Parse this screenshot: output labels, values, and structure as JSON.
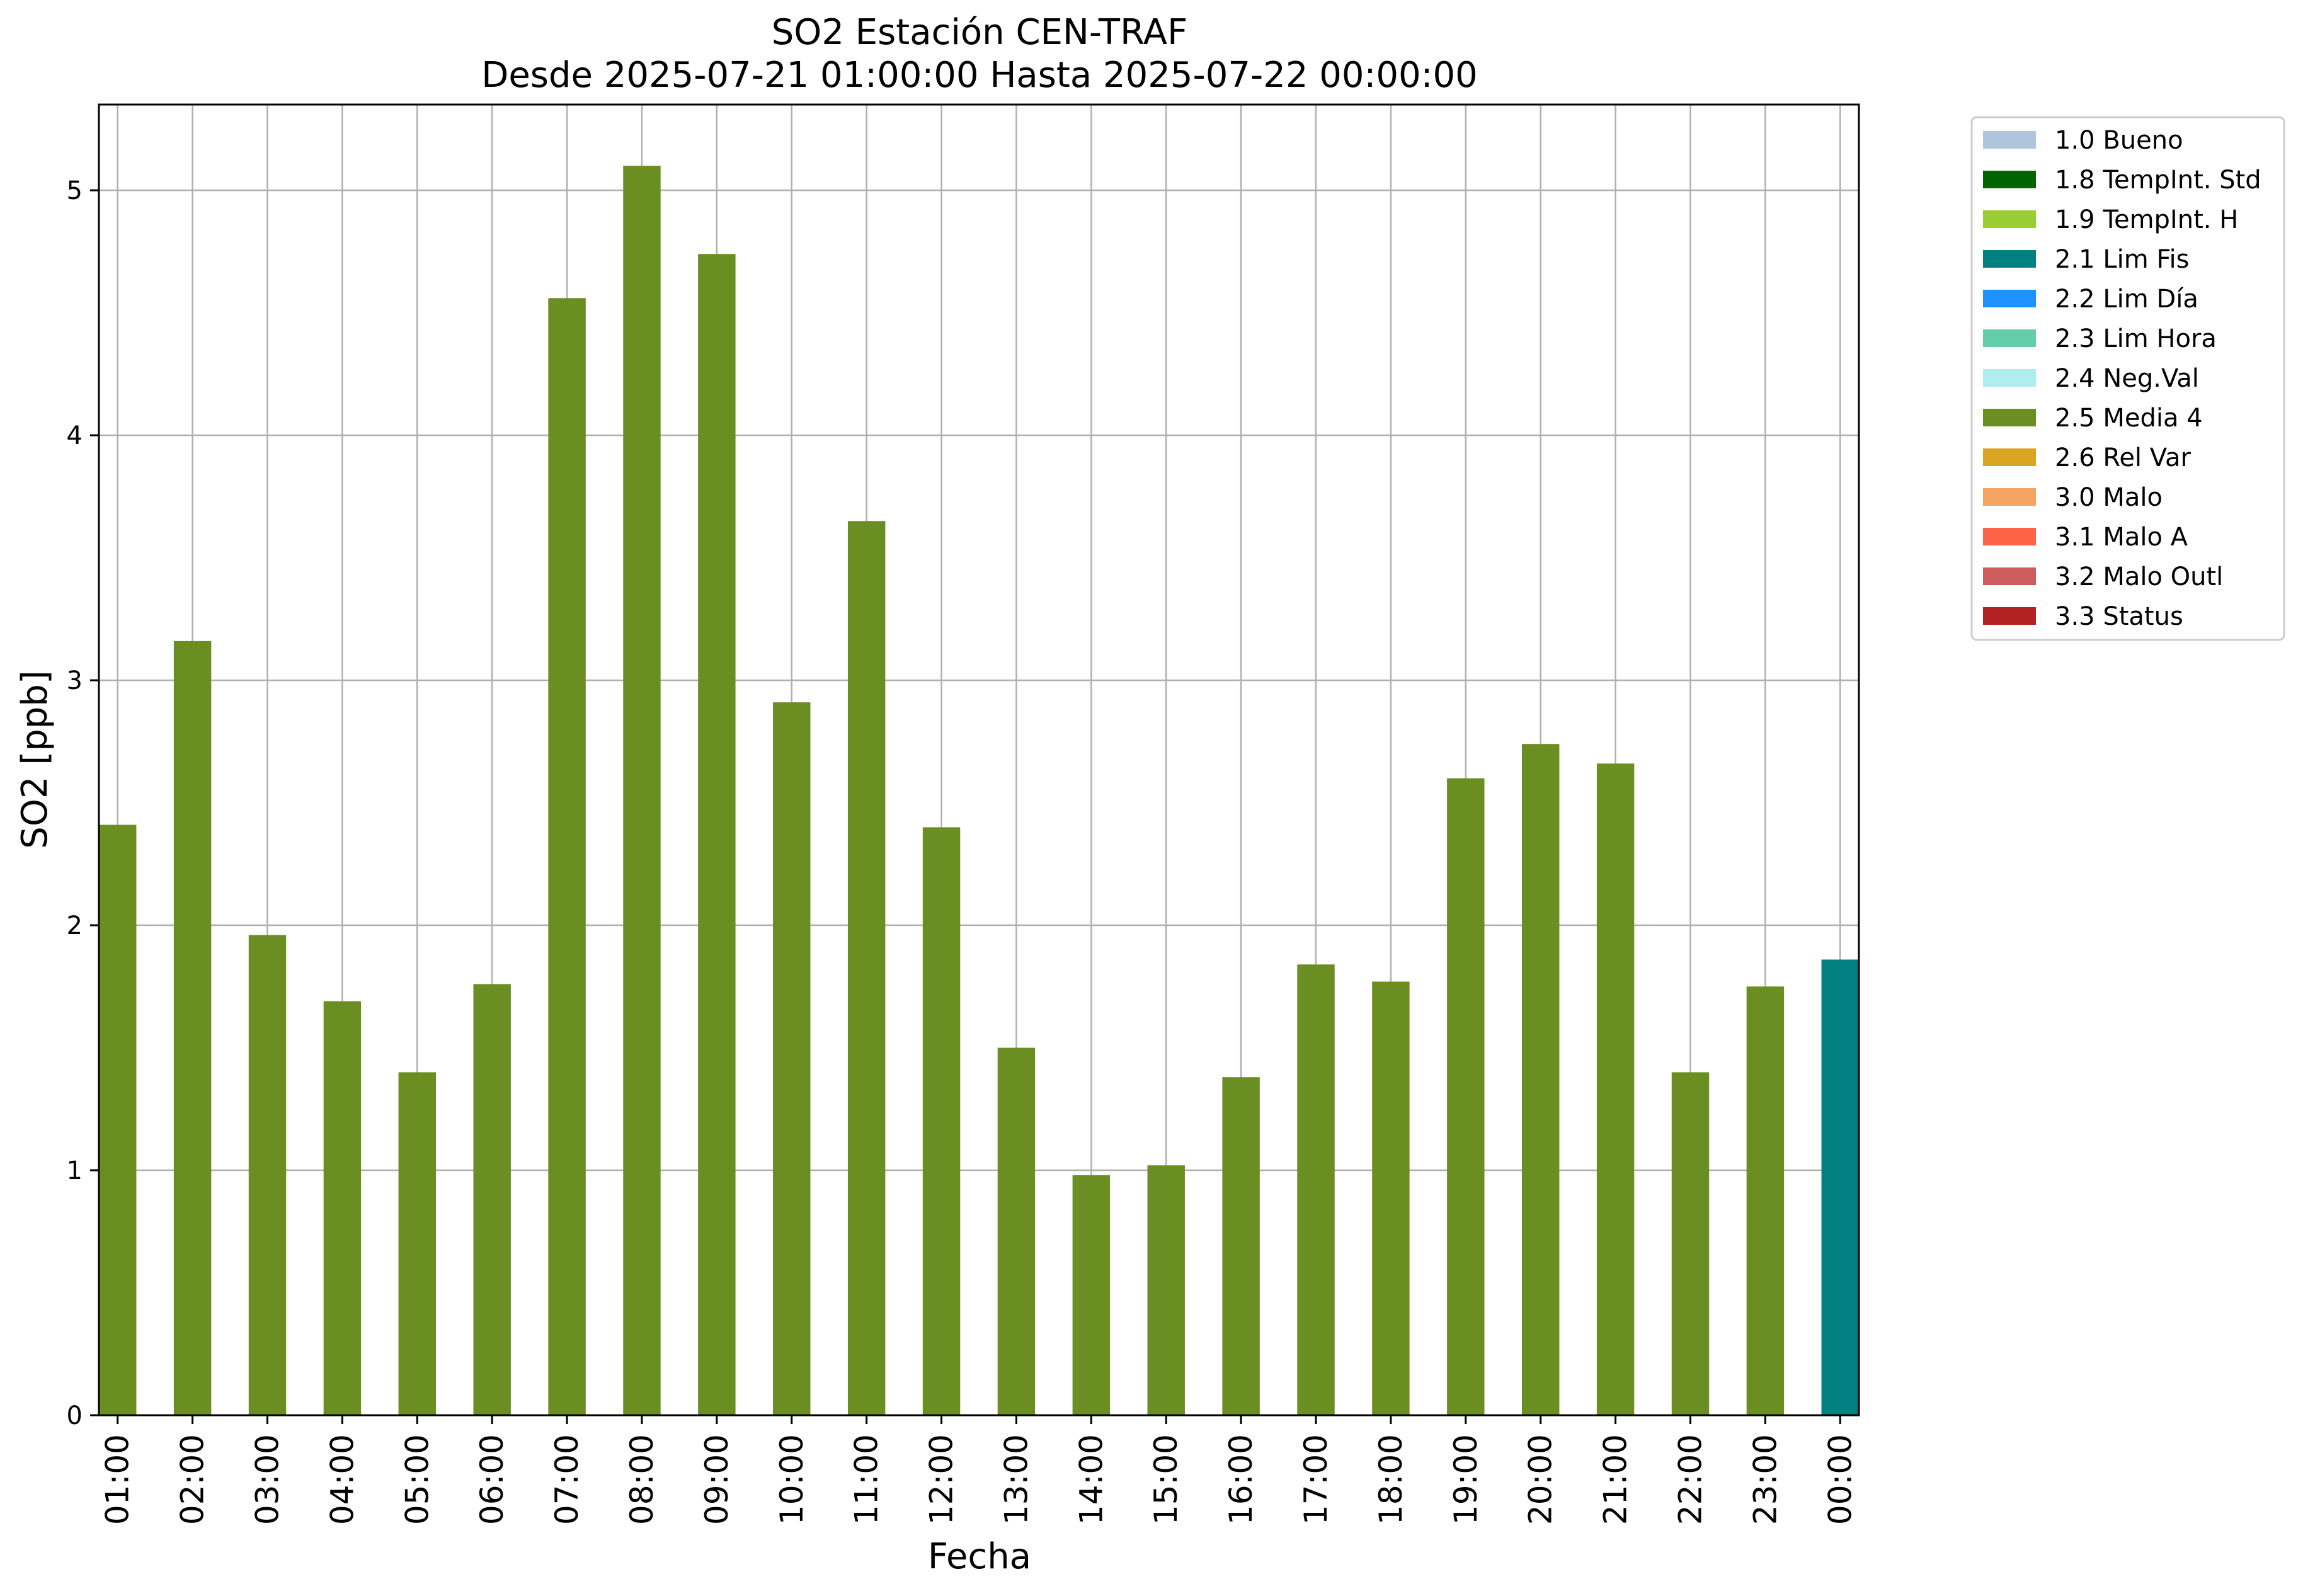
{
  "chart_data": {
    "type": "bar",
    "title": "SO2 Estación CEN-TRAF",
    "subtitle": "Desde 2025-07-21 01:00:00 Hasta 2025-07-22 00:00:00",
    "xlabel": "Fecha",
    "ylabel": "SO2 [ppb]",
    "ylim": [
      0,
      5.35
    ],
    "yticks": [
      "0",
      "1",
      "2",
      "3",
      "4",
      "5"
    ],
    "grid": true,
    "legend_position": "outside-right-top",
    "categories": [
      "01:00",
      "02:00",
      "03:00",
      "04:00",
      "05:00",
      "06:00",
      "07:00",
      "08:00",
      "09:00",
      "10:00",
      "11:00",
      "12:00",
      "13:00",
      "14:00",
      "15:00",
      "16:00",
      "17:00",
      "18:00",
      "19:00",
      "20:00",
      "21:00",
      "22:00",
      "23:00",
      "00:00"
    ],
    "values": [
      2.41,
      3.16,
      1.96,
      1.69,
      1.4,
      1.76,
      4.56,
      5.1,
      4.74,
      2.91,
      3.65,
      2.4,
      1.5,
      0.98,
      1.02,
      1.38,
      1.84,
      1.77,
      2.6,
      2.74,
      2.66,
      1.4,
      1.75,
      1.86
    ],
    "flags": [
      "2.5 Media 4",
      "2.5 Media 4",
      "2.5 Media 4",
      "2.5 Media 4",
      "2.5 Media 4",
      "2.5 Media 4",
      "2.5 Media 4",
      "2.5 Media 4",
      "2.5 Media 4",
      "2.5 Media 4",
      "2.5 Media 4",
      "2.5 Media 4",
      "2.5 Media 4",
      "2.5 Media 4",
      "2.5 Media 4",
      "2.5 Media 4",
      "2.5 Media 4",
      "2.5 Media 4",
      "2.5 Media 4",
      "2.5 Media 4",
      "2.5 Media 4",
      "2.5 Media 4",
      "2.5 Media 4",
      "2.1 Lim Fis"
    ],
    "legend": [
      {
        "label": "1.0 Bueno",
        "color": "#b0c4de"
      },
      {
        "label": "1.8 TempInt. Std",
        "color": "#006400"
      },
      {
        "label": "1.9 TempInt. H",
        "color": "#9acd32"
      },
      {
        "label": "2.1 Lim Fis",
        "color": "#008080"
      },
      {
        "label": "2.2 Lim Día",
        "color": "#1e90ff"
      },
      {
        "label": "2.3 Lim Hora",
        "color": "#66cdaa"
      },
      {
        "label": "2.4 Neg.Val",
        "color": "#afeeee"
      },
      {
        "label": "2.5 Media 4",
        "color": "#6b8e23"
      },
      {
        "label": "2.6 Rel Var",
        "color": "#daa520"
      },
      {
        "label": "3.0 Malo",
        "color": "#f4a460"
      },
      {
        "label": "3.1 Malo A",
        "color": "#ff6347"
      },
      {
        "label": "3.2 Malo Outl",
        "color": "#cd5c5c"
      },
      {
        "label": "3.3 Status",
        "color": "#b22222"
      }
    ]
  }
}
